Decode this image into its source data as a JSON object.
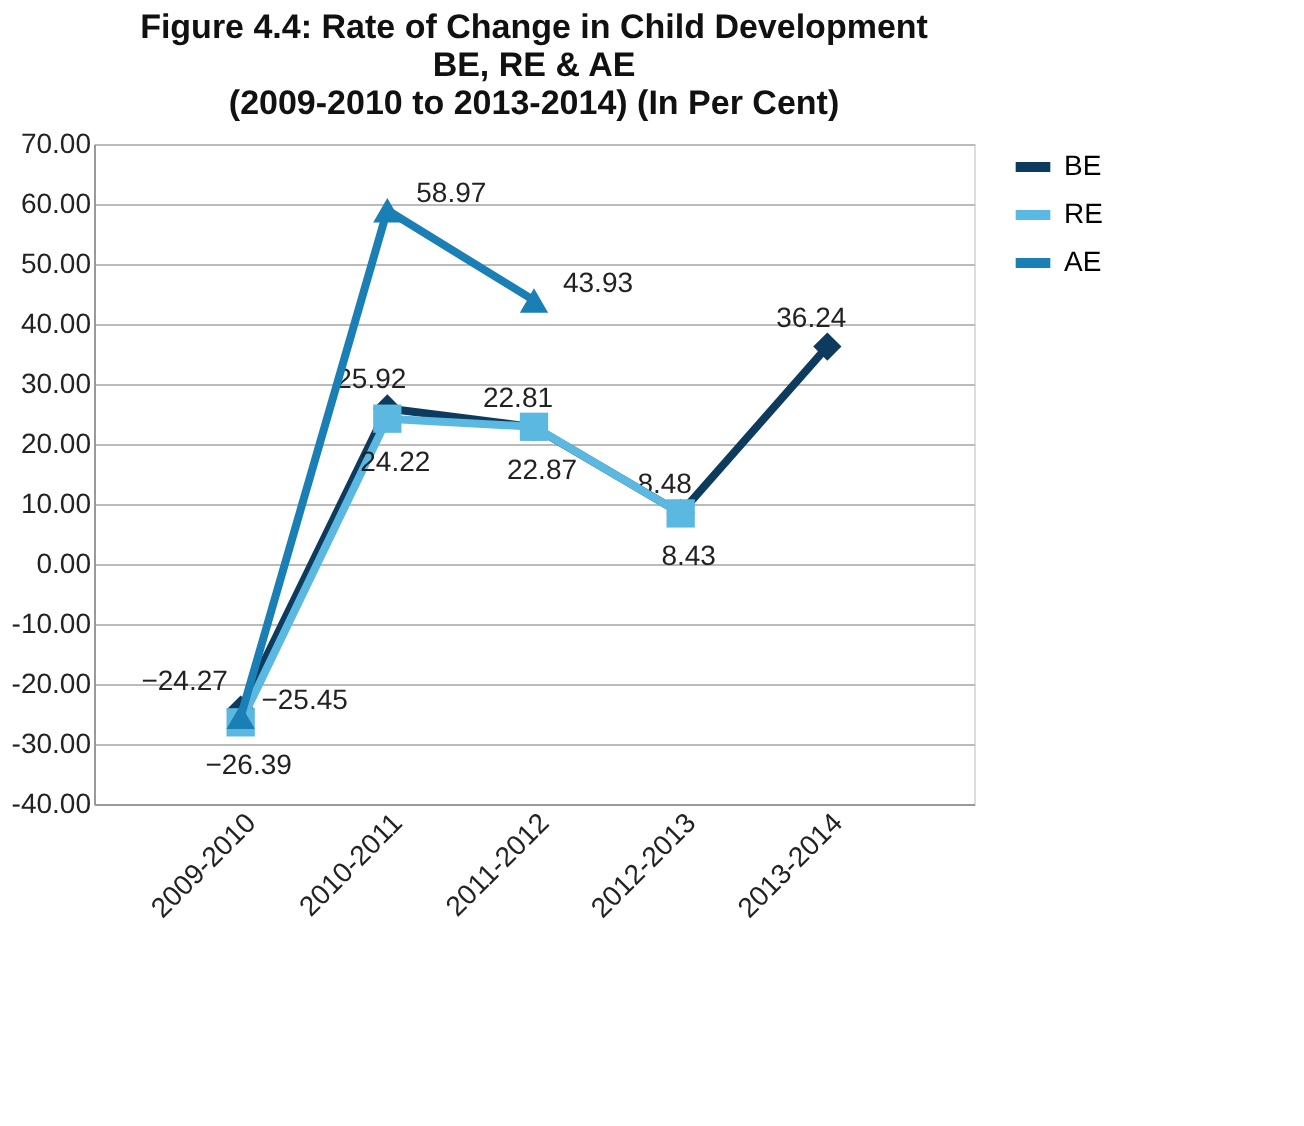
{
  "chart_data": {
    "type": "line",
    "title": "Figure 4.4: Rate of Change in Child Development\nBE, RE & AE\n(2009-2010 to 2013-2014) (In Per Cent)",
    "categories": [
      "2009-2010",
      "2010-2011",
      "2011-2012",
      "2012-2013",
      "2013-2014"
    ],
    "series": [
      {
        "name": "BE",
        "color": "#0d3b5e",
        "marker": "diamond",
        "values": [
          -24.27,
          25.92,
          22.81,
          8.48,
          36.24
        ]
      },
      {
        "name": "RE",
        "color": "#5bb8e0",
        "marker": "square",
        "values": [
          -26.39,
          24.22,
          22.87,
          8.43,
          null
        ]
      },
      {
        "name": "AE",
        "color": "#1a7fb5",
        "marker": "triangle",
        "values": [
          -25.45,
          58.97,
          43.93,
          null,
          null
        ]
      }
    ],
    "ylim": [
      -40,
      70
    ],
    "yticks": [
      {
        "value": -40,
        "label": "-40.00"
      },
      {
        "value": -30,
        "label": "-30.00"
      },
      {
        "value": -20,
        "label": "-20.00"
      },
      {
        "value": -10,
        "label": "-10.00"
      },
      {
        "value": 0,
        "label": "0.00"
      },
      {
        "value": 10,
        "label": "10.00"
      },
      {
        "value": 20,
        "label": "20.00"
      },
      {
        "value": 30,
        "label": "30.00"
      },
      {
        "value": 40,
        "label": "40.00"
      },
      {
        "value": 50,
        "label": "50.00"
      },
      {
        "value": 60,
        "label": "60.00"
      },
      {
        "value": 70,
        "label": "70.00"
      }
    ],
    "grid": "y",
    "legend": "right",
    "data_labels": true,
    "line_style": "solid"
  }
}
